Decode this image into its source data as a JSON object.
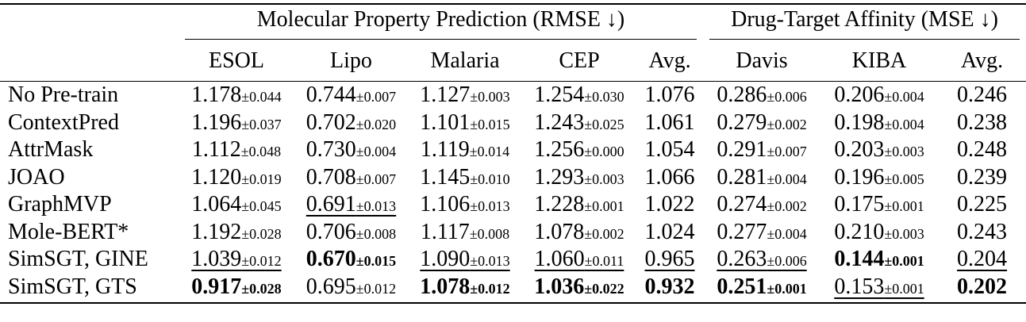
{
  "table": {
    "groups": [
      "Molecular Property Prediction (RMSE ↓)",
      "Drug-Target Affinity (MSE ↓)"
    ],
    "columns": [
      "ESOL",
      "Lipo",
      "Malaria",
      "CEP",
      "Avg.",
      "Davis",
      "KIBA",
      "Avg."
    ],
    "rows": [
      {
        "method": "No Pre-train",
        "cells": [
          {
            "mean": "1.178",
            "std": "±0.044"
          },
          {
            "mean": "0.744",
            "std": "±0.007"
          },
          {
            "mean": "1.127",
            "std": "±0.003"
          },
          {
            "mean": "1.254",
            "std": "±0.030"
          },
          {
            "mean": "1.076"
          },
          {
            "mean": "0.286",
            "std": "±0.006"
          },
          {
            "mean": "0.206",
            "std": "±0.004"
          },
          {
            "mean": "0.246"
          }
        ]
      },
      {
        "method": "ContextPred",
        "cells": [
          {
            "mean": "1.196",
            "std": "±0.037"
          },
          {
            "mean": "0.702",
            "std": "±0.020"
          },
          {
            "mean": "1.101",
            "std": "±0.015"
          },
          {
            "mean": "1.243",
            "std": "±0.025"
          },
          {
            "mean": "1.061"
          },
          {
            "mean": "0.279",
            "std": "±0.002"
          },
          {
            "mean": "0.198",
            "std": "±0.004"
          },
          {
            "mean": "0.238"
          }
        ]
      },
      {
        "method": "AttrMask",
        "cells": [
          {
            "mean": "1.112",
            "std": "±0.048"
          },
          {
            "mean": "0.730",
            "std": "±0.004"
          },
          {
            "mean": "1.119",
            "std": "±0.014"
          },
          {
            "mean": "1.256",
            "std": "±0.000"
          },
          {
            "mean": "1.054"
          },
          {
            "mean": "0.291",
            "std": "±0.007"
          },
          {
            "mean": "0.203",
            "std": "±0.003"
          },
          {
            "mean": "0.248"
          }
        ]
      },
      {
        "method": "JOAO",
        "cells": [
          {
            "mean": "1.120",
            "std": "±0.019"
          },
          {
            "mean": "0.708",
            "std": "±0.007"
          },
          {
            "mean": "1.145",
            "std": "±0.010"
          },
          {
            "mean": "1.293",
            "std": "±0.003"
          },
          {
            "mean": "1.066"
          },
          {
            "mean": "0.281",
            "std": "±0.004"
          },
          {
            "mean": "0.196",
            "std": "±0.005"
          },
          {
            "mean": "0.239"
          }
        ]
      },
      {
        "method": "GraphMVP",
        "cells": [
          {
            "mean": "1.064",
            "std": "±0.045"
          },
          {
            "mean": "0.691",
            "std": "±0.013",
            "underline": true
          },
          {
            "mean": "1.106",
            "std": "±0.013"
          },
          {
            "mean": "1.228",
            "std": "±0.001"
          },
          {
            "mean": "1.022"
          },
          {
            "mean": "0.274",
            "std": "±0.002"
          },
          {
            "mean": "0.175",
            "std": "±0.001"
          },
          {
            "mean": "0.225"
          }
        ]
      },
      {
        "method": "Mole-BERT*",
        "cells": [
          {
            "mean": "1.192",
            "std": "±0.028"
          },
          {
            "mean": "0.706",
            "std": "±0.008"
          },
          {
            "mean": "1.117",
            "std": "±0.008"
          },
          {
            "mean": "1.078",
            "std": "±0.002"
          },
          {
            "mean": "1.024"
          },
          {
            "mean": "0.277",
            "std": "±0.004"
          },
          {
            "mean": "0.210",
            "std": "±0.003"
          },
          {
            "mean": "0.243"
          }
        ]
      },
      {
        "method": "SimSGT, GINE",
        "cells": [
          {
            "mean": "1.039",
            "std": "±0.012",
            "underline": true
          },
          {
            "mean": "0.670",
            "std": "±0.015",
            "bold": true
          },
          {
            "mean": "1.090",
            "std": "±0.013",
            "underline": true
          },
          {
            "mean": "1.060",
            "std": "±0.011",
            "underline": true
          },
          {
            "mean": "0.965",
            "underline": true
          },
          {
            "mean": "0.263",
            "std": "±0.006",
            "underline": true
          },
          {
            "mean": "0.144",
            "std": "±0.001",
            "bold": true
          },
          {
            "mean": "0.204",
            "underline": true
          }
        ]
      },
      {
        "method": "SimSGT, GTS",
        "cells": [
          {
            "mean": "0.917",
            "std": "±0.028",
            "bold": true
          },
          {
            "mean": "0.695",
            "std": "±0.012"
          },
          {
            "mean": "1.078",
            "std": "±0.012",
            "bold": true
          },
          {
            "mean": "1.036",
            "std": "±0.022",
            "bold": true
          },
          {
            "mean": "0.932",
            "bold": true
          },
          {
            "mean": "0.251",
            "std": "±0.001",
            "bold": true
          },
          {
            "mean": "0.153",
            "std": "±0.001",
            "underline": true
          },
          {
            "mean": "0.202",
            "bold": true
          }
        ]
      }
    ]
  }
}
